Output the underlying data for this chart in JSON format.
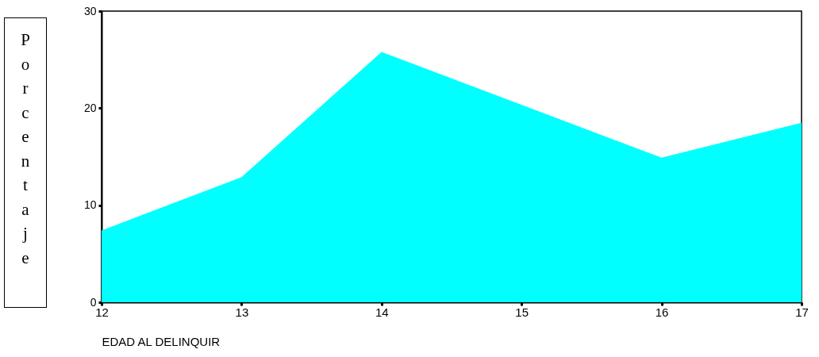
{
  "chart_data": {
    "type": "area",
    "xlabel": "EDAD AL DELINQUIR",
    "ylabel": "Porcentaje",
    "x": [
      12,
      13,
      14,
      16,
      17
    ],
    "series": [
      {
        "color": "#00ffff",
        "values": [
          7.4,
          12.9,
          25.8,
          14.9,
          18.5
        ]
      }
    ],
    "xlim": [
      12,
      17
    ],
    "xticks": [
      12,
      13,
      14,
      15,
      16,
      17
    ],
    "ylim": [
      0,
      30
    ],
    "yticks": [
      0,
      10,
      20,
      30
    ],
    "grid": false
  }
}
